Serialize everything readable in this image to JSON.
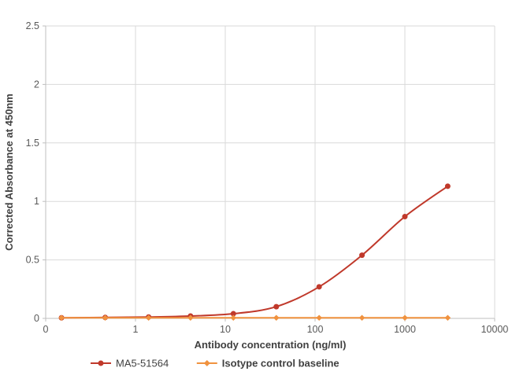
{
  "chart_data": {
    "type": "line",
    "title": "",
    "xlabel": "Antibody concentration (ng/ml)",
    "ylabel": "Corrected Absorbance at 450nm",
    "x_scale": "log",
    "x_min": 0.1,
    "x_max": 10000,
    "x_ticks": [
      {
        "value": 0.1,
        "label": "0"
      },
      {
        "value": 1,
        "label": "1"
      },
      {
        "value": 10,
        "label": "10"
      },
      {
        "value": 100,
        "label": "100"
      },
      {
        "value": 1000,
        "label": "1000"
      },
      {
        "value": 10000,
        "label": "10000"
      }
    ],
    "ylim": [
      0,
      2.5
    ],
    "y_ticks": [
      {
        "value": 0,
        "label": "0"
      },
      {
        "value": 0.5,
        "label": "0.5"
      },
      {
        "value": 1,
        "label": "1"
      },
      {
        "value": 1.5,
        "label": "1.5"
      },
      {
        "value": 2,
        "label": "2"
      },
      {
        "value": 2.5,
        "label": "2.5"
      }
    ],
    "grid": true,
    "legend_position": "bottom",
    "colors": {
      "grid": "#d9d9d9",
      "axis": "#bfbfbf",
      "tick_label": "#595959",
      "axis_title": "#404040",
      "series_red": "#c0392b",
      "series_orange": "#f0923f"
    },
    "series": [
      {
        "name": "MA5-51564",
        "color": "#c0392b",
        "marker": "circle",
        "smooth": true,
        "x": [
          0.15,
          0.46,
          1.4,
          4.1,
          12.3,
          37,
          111,
          333,
          1000,
          3000
        ],
        "y": [
          0.005,
          0.008,
          0.012,
          0.02,
          0.04,
          0.1,
          0.27,
          0.54,
          0.87,
          1.13
        ]
      },
      {
        "name": "Isotype control baseline",
        "color": "#f0923f",
        "marker": "diamond",
        "smooth": false,
        "x": [
          0.15,
          0.46,
          1.4,
          4.1,
          12.3,
          37,
          111,
          333,
          1000,
          3000
        ],
        "y": [
          0.005,
          0.005,
          0.005,
          0.005,
          0.005,
          0.005,
          0.005,
          0.005,
          0.005,
          0.005
        ]
      }
    ],
    "legend": {
      "items": [
        {
          "label": "MA5-51564",
          "color": "#c0392b",
          "marker": "circle",
          "bold": false
        },
        {
          "label": "Isotype control baseline",
          "color": "#f0923f",
          "marker": "diamond",
          "bold": true
        }
      ]
    }
  }
}
